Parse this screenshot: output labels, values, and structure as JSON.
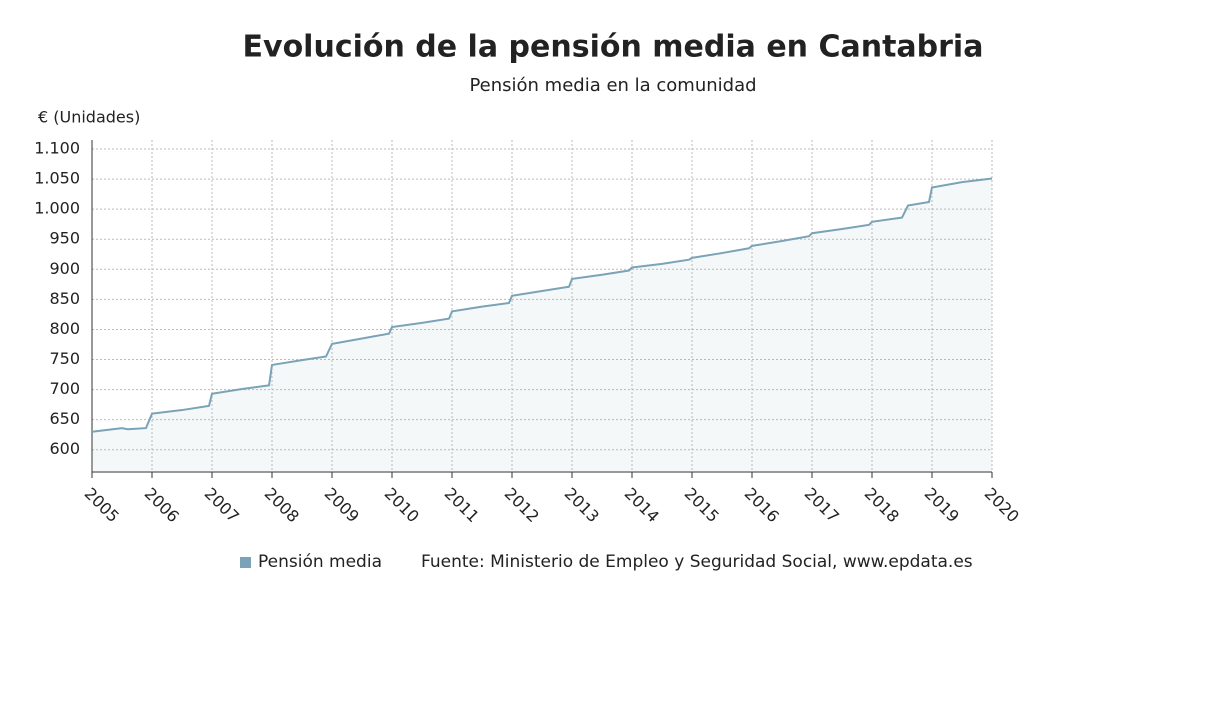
{
  "chart_data": {
    "type": "area",
    "title": "Evolución de la pensión media en Cantabria",
    "subtitle": "Pensión media en la comunidad",
    "y_label": "€ (Unidades)",
    "source": "Fuente: Ministerio de Empleo y Seguridad Social, www.epdata.es",
    "x": [
      2005.0,
      2005.5,
      2005.6,
      2005.9,
      2006.0,
      2006.5,
      2006.95,
      2007.0,
      2007.5,
      2007.95,
      2008.0,
      2008.5,
      2008.9,
      2009.0,
      2009.5,
      2009.95,
      2010.0,
      2010.5,
      2010.95,
      2011.0,
      2011.5,
      2011.95,
      2012.0,
      2012.5,
      2012.95,
      2013.0,
      2013.5,
      2013.95,
      2014.0,
      2014.5,
      2014.95,
      2015.0,
      2015.5,
      2015.95,
      2016.0,
      2016.5,
      2016.95,
      2017.0,
      2017.5,
      2017.95,
      2018.0,
      2018.5,
      2018.6,
      2018.95,
      2019.0,
      2019.5,
      2020.0
    ],
    "series": [
      {
        "name": "Pensión media",
        "color": "#7aa3b8",
        "values": [
          630,
          636,
          634,
          636,
          660,
          666,
          673,
          693,
          701,
          707,
          741,
          749,
          755,
          776,
          785,
          793,
          804,
          811,
          818,
          830,
          838,
          844,
          856,
          864,
          871,
          884,
          891,
          898,
          903,
          909,
          916,
          919,
          927,
          935,
          939,
          947,
          955,
          960,
          967,
          974,
          979,
          986,
          1006,
          1012,
          1036,
          1045,
          1051
        ]
      }
    ],
    "xlim": [
      2005,
      2020
    ],
    "xticks": [
      2005,
      2006,
      2007,
      2008,
      2009,
      2010,
      2011,
      2012,
      2013,
      2014,
      2015,
      2016,
      2017,
      2018,
      2019,
      2020
    ],
    "ylim": [
      563,
      1115
    ],
    "yticks": [
      600,
      650,
      700,
      750,
      800,
      850,
      900,
      950,
      {
        "value": 1000,
        "label": "1.000"
      },
      {
        "value": 1050,
        "label": "1.050"
      },
      {
        "value": 1100,
        "label": "1.100"
      }
    ],
    "grid": true
  }
}
